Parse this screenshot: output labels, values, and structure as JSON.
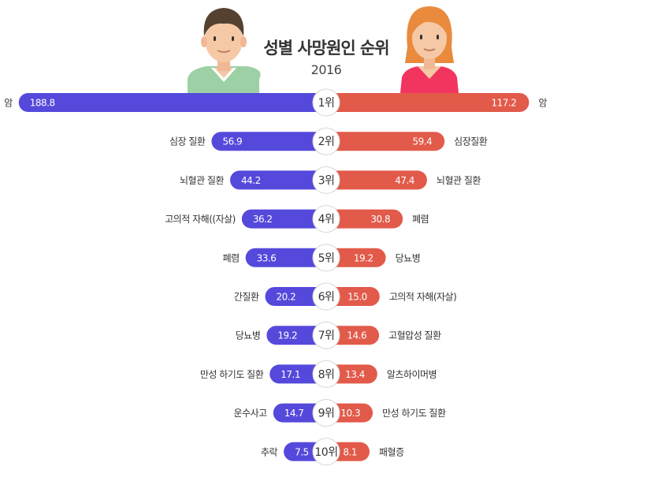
{
  "title": "성별 사망원인 순위",
  "subtitle": "2016",
  "colors": {
    "male": "#5549dc",
    "female": "#e25a4a",
    "male_shirt": "#9dd1a5",
    "female_shirt": "#f2355f"
  },
  "chart_data": {
    "type": "bar",
    "title": "성별 사망원인 순위",
    "subtitle": "2016",
    "layout": "butterfly",
    "ranks": [
      "1위",
      "2위",
      "3위",
      "4위",
      "5위",
      "6위",
      "7위",
      "8위",
      "9위",
      "10위"
    ],
    "series": [
      {
        "side": "left",
        "categories": [
          "암",
          "심장 질환",
          "뇌혈관 질환",
          "고의적 자해((자살)",
          "폐렴",
          "간질환",
          "당뇨병",
          "만성 하기도 질환",
          "운수사고",
          "추락"
        ],
        "values": [
          188.8,
          56.9,
          44.2,
          36.2,
          33.6,
          20.2,
          19.2,
          17.1,
          14.7,
          7.5
        ],
        "value_labels": [
          "188.8",
          "56.9",
          "44.2",
          "36.2",
          "33.6",
          "20.2",
          "19.2",
          "17.1",
          "14.7",
          "7.5"
        ]
      },
      {
        "side": "right",
        "categories": [
          "암",
          "심장질환",
          "뇌혈관 질환",
          "폐렴",
          "당뇨병",
          "고의적 자해(자살)",
          "고혈압성 질환",
          "알츠하이머병",
          "만성 하기도 질환",
          "패혈증"
        ],
        "values": [
          117.2,
          59.4,
          47.4,
          30.8,
          19.2,
          15.0,
          14.6,
          13.4,
          10.3,
          8.1
        ],
        "value_labels": [
          "117.2",
          "59.4",
          "47.4",
          "30.8",
          "19.2",
          "15.0",
          "14.6",
          "13.4",
          "10.3",
          "8.1"
        ]
      }
    ]
  }
}
